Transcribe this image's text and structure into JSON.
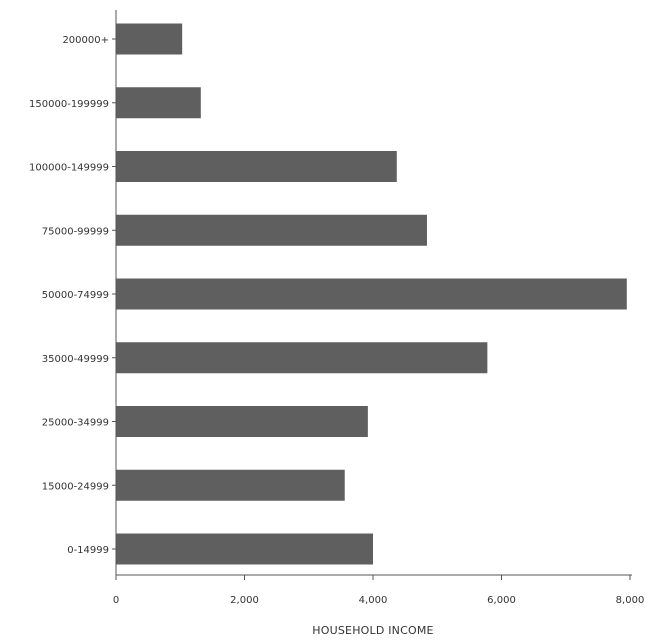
{
  "chart_data": {
    "type": "bar",
    "orientation": "horizontal",
    "categories": [
      "200000+",
      "150000-199999",
      "100000-149999",
      "75000-99999",
      "50000-74999",
      "35000-49999",
      "25000-34999",
      "15000-24999",
      "0-14999"
    ],
    "values": [
      1030,
      1320,
      4370,
      4840,
      7950,
      5780,
      3920,
      3560,
      4000
    ],
    "xlabel": "HOUSEHOLD INCOME",
    "ylabel": "",
    "xlim": [
      0,
      8000
    ],
    "xticks": [
      0,
      2000,
      4000,
      6000,
      8000
    ],
    "xtick_labels": [
      "0",
      "2,000",
      "4,000",
      "6,000",
      "8,000"
    ],
    "grid": false,
    "bar_color": "#5f5f5f"
  }
}
